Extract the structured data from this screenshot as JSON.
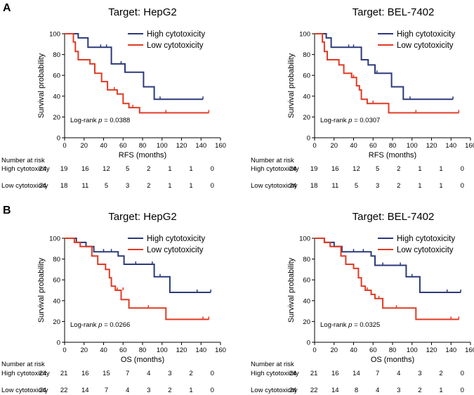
{
  "chart_data": [
    {
      "panel_label": "A",
      "type": "line",
      "title": "Target: HepG2",
      "xlabel": "RFS (months)",
      "ylabel": "Survival probability",
      "xlim": [
        0,
        160
      ],
      "ylim": [
        0,
        100
      ],
      "xticks": [
        "0",
        "20",
        "40",
        "60",
        "80",
        "100",
        "120",
        "140",
        "160"
      ],
      "yticks": [
        "0",
        "20",
        "40",
        "60",
        "80",
        "100"
      ],
      "legend_position": "top-right",
      "log_rank_prefix": "Log-rank ",
      "log_rank_p": "p",
      "log_rank_value": " = 0.0388",
      "series": [
        {
          "name": "High cytotoxicity",
          "color": "#2b3a7a",
          "steps": [
            [
              0,
              100
            ],
            [
              14,
              100
            ],
            [
              14,
              96
            ],
            [
              24,
              96
            ],
            [
              24,
              87
            ],
            [
              48,
              87
            ],
            [
              48,
              71
            ],
            [
              62,
              71
            ],
            [
              62,
              63
            ],
            [
              81,
              63
            ],
            [
              81,
              49
            ],
            [
              92,
              49
            ],
            [
              92,
              37
            ],
            [
              142,
              37
            ]
          ],
          "censors": [
            [
              37,
              87
            ],
            [
              43,
              87
            ],
            [
              58,
              71
            ],
            [
              98,
              37
            ],
            [
              142,
              37
            ]
          ]
        },
        {
          "name": "Low cytotoxicity",
          "color": "#e03b24",
          "steps": [
            [
              0,
              100
            ],
            [
              9,
              100
            ],
            [
              9,
              92
            ],
            [
              11,
              92
            ],
            [
              11,
              83
            ],
            [
              14,
              83
            ],
            [
              14,
              75
            ],
            [
              26,
              75
            ],
            [
              26,
              71
            ],
            [
              31,
              71
            ],
            [
              31,
              62
            ],
            [
              38,
              62
            ],
            [
              38,
              54
            ],
            [
              44,
              54
            ],
            [
              44,
              46
            ],
            [
              54,
              46
            ],
            [
              54,
              42
            ],
            [
              60,
              42
            ],
            [
              60,
              33
            ],
            [
              66,
              33
            ],
            [
              66,
              29
            ],
            [
              77,
              29
            ],
            [
              77,
              24
            ],
            [
              148,
              24
            ]
          ],
          "censors": [
            [
              51,
              46
            ],
            [
              70,
              29
            ],
            [
              104,
              24
            ],
            [
              148,
              24
            ]
          ]
        }
      ],
      "risk_header": "Number at risk",
      "risk_groups": [
        {
          "label": "High cytotoxicity",
          "values": [
            "24",
            "19",
            "16",
            "12",
            "5",
            "2",
            "1",
            "1",
            "0"
          ]
        },
        {
          "label": "Low cytotoxicity",
          "values": [
            "24",
            "18",
            "11",
            "5",
            "3",
            "2",
            "1",
            "1",
            "0"
          ]
        }
      ]
    },
    {
      "panel_label": "",
      "type": "line",
      "title": "Target: BEL-7402",
      "xlabel": "RFS (months)",
      "ylabel": "Survival probability",
      "xlim": [
        0,
        160
      ],
      "ylim": [
        0,
        100
      ],
      "xticks": [
        "0",
        "20",
        "40",
        "60",
        "80",
        "100",
        "120",
        "140",
        "160"
      ],
      "yticks": [
        "0",
        "20",
        "40",
        "60",
        "80",
        "100"
      ],
      "legend_position": "top-right",
      "log_rank_prefix": "Log-rank ",
      "log_rank_p": "p",
      "log_rank_value": " = 0.0307",
      "series": [
        {
          "name": "High cytotoxicity",
          "color": "#2b3a7a",
          "steps": [
            [
              0,
              100
            ],
            [
              12,
              100
            ],
            [
              12,
              96
            ],
            [
              17,
              96
            ],
            [
              17,
              87
            ],
            [
              48,
              87
            ],
            [
              48,
              75
            ],
            [
              55,
              75
            ],
            [
              55,
              70
            ],
            [
              62,
              70
            ],
            [
              62,
              62
            ],
            [
              79,
              62
            ],
            [
              79,
              49
            ],
            [
              91,
              49
            ],
            [
              91,
              37
            ],
            [
              142,
              37
            ]
          ],
          "censors": [
            [
              35,
              87
            ],
            [
              40,
              87
            ],
            [
              64,
              62
            ],
            [
              98,
              37
            ],
            [
              142,
              37
            ]
          ]
        },
        {
          "name": "Low cytotoxicity",
          "color": "#e03b24",
          "steps": [
            [
              0,
              100
            ],
            [
              8,
              100
            ],
            [
              8,
              92
            ],
            [
              10,
              92
            ],
            [
              10,
              83
            ],
            [
              13,
              83
            ],
            [
              13,
              75
            ],
            [
              25,
              75
            ],
            [
              25,
              70
            ],
            [
              30,
              70
            ],
            [
              30,
              62
            ],
            [
              38,
              62
            ],
            [
              38,
              58
            ],
            [
              43,
              58
            ],
            [
              43,
              50
            ],
            [
              46,
              50
            ],
            [
              46,
              46
            ],
            [
              48,
              46
            ],
            [
              48,
              37
            ],
            [
              54,
              37
            ],
            [
              54,
              33
            ],
            [
              76,
              33
            ],
            [
              76,
              24
            ],
            [
              148,
              24
            ]
          ],
          "censors": [
            [
              40,
              58
            ],
            [
              60,
              33
            ],
            [
              104,
              24
            ],
            [
              148,
              24
            ]
          ]
        }
      ],
      "risk_header": "Number at risk",
      "risk_groups": [
        {
          "label": "High cytotoxicity",
          "values": [
            "24",
            "19",
            "16",
            "12",
            "5",
            "2",
            "1",
            "1",
            "0"
          ]
        },
        {
          "label": "Low cytotoxicity",
          "values": [
            "24",
            "18",
            "11",
            "5",
            "3",
            "2",
            "1",
            "1",
            "0"
          ]
        }
      ]
    },
    {
      "panel_label": "B",
      "type": "line",
      "title": "Target: HepG2",
      "xlabel": "OS (months)",
      "ylabel": "Survival probability",
      "xlim": [
        0,
        160
      ],
      "ylim": [
        0,
        100
      ],
      "xticks": [
        "0",
        "20",
        "40",
        "60",
        "80",
        "100",
        "120",
        "140",
        "160"
      ],
      "yticks": [
        "0",
        "20",
        "40",
        "60",
        "80",
        "100"
      ],
      "legend_position": "top-right",
      "log_rank_prefix": "Log-rank ",
      "log_rank_p": "p",
      "log_rank_value": " = 0.0266",
      "series": [
        {
          "name": "High cytotoxicity",
          "color": "#2b3a7a",
          "steps": [
            [
              0,
              100
            ],
            [
              12,
              100
            ],
            [
              12,
              96
            ],
            [
              22,
              96
            ],
            [
              22,
              92
            ],
            [
              30,
              92
            ],
            [
              30,
              87
            ],
            [
              55,
              87
            ],
            [
              55,
              83
            ],
            [
              61,
              83
            ],
            [
              61,
              75
            ],
            [
              92,
              75
            ],
            [
              92,
              63
            ],
            [
              108,
              63
            ],
            [
              108,
              48
            ],
            [
              150,
              48
            ]
          ],
          "censors": [
            [
              40,
              87
            ],
            [
              48,
              87
            ],
            [
              73,
              75
            ],
            [
              90,
              75
            ],
            [
              98,
              63
            ],
            [
              136,
              48
            ],
            [
              150,
              48
            ]
          ]
        },
        {
          "name": "Low cytotoxicity",
          "color": "#e03b24",
          "steps": [
            [
              0,
              100
            ],
            [
              10,
              100
            ],
            [
              10,
              96
            ],
            [
              16,
              96
            ],
            [
              16,
              92
            ],
            [
              28,
              92
            ],
            [
              28,
              83
            ],
            [
              34,
              83
            ],
            [
              34,
              75
            ],
            [
              42,
              75
            ],
            [
              42,
              70
            ],
            [
              46,
              70
            ],
            [
              46,
              62
            ],
            [
              48,
              62
            ],
            [
              48,
              54
            ],
            [
              52,
              54
            ],
            [
              52,
              50
            ],
            [
              58,
              50
            ],
            [
              58,
              41
            ],
            [
              66,
              41
            ],
            [
              66,
              33
            ],
            [
              104,
              33
            ],
            [
              104,
              22
            ],
            [
              148,
              22
            ]
          ],
          "censors": [
            [
              54,
              50
            ],
            [
              60,
              50
            ],
            [
              86,
              33
            ],
            [
              142,
              22
            ],
            [
              148,
              22
            ]
          ]
        }
      ],
      "risk_header": "Number at risk",
      "risk_groups": [
        {
          "label": "High cytotoxicity",
          "values": [
            "24",
            "21",
            "16",
            "15",
            "7",
            "4",
            "3",
            "2",
            "0"
          ]
        },
        {
          "label": "Low cytotoxicity",
          "values": [
            "24",
            "22",
            "14",
            "7",
            "4",
            "3",
            "2",
            "1",
            "0"
          ]
        }
      ]
    },
    {
      "panel_label": "",
      "type": "line",
      "title": "Target: BEL-7402",
      "xlabel": "OS (months)",
      "ylabel": "Survival probability",
      "xlim": [
        0,
        160
      ],
      "ylim": [
        0,
        100
      ],
      "xticks": [
        "0",
        "20",
        "40",
        "60",
        "80",
        "100",
        "120",
        "140",
        "160"
      ],
      "yticks": [
        "0",
        "20",
        "40",
        "60",
        "80",
        "100"
      ],
      "legend_position": "top-right",
      "log_rank_prefix": "Log-rank ",
      "log_rank_p": "p",
      "log_rank_value": " = 0.0325",
      "series": [
        {
          "name": "High cytotoxicity",
          "color": "#2b3a7a",
          "steps": [
            [
              0,
              100
            ],
            [
              10,
              100
            ],
            [
              10,
              96
            ],
            [
              20,
              96
            ],
            [
              20,
              92
            ],
            [
              28,
              92
            ],
            [
              28,
              87
            ],
            [
              58,
              87
            ],
            [
              58,
              83
            ],
            [
              62,
              83
            ],
            [
              62,
              74
            ],
            [
              94,
              74
            ],
            [
              94,
              63
            ],
            [
              108,
              63
            ],
            [
              108,
              48
            ],
            [
              150,
              48
            ]
          ],
          "censors": [
            [
              40,
              87
            ],
            [
              50,
              87
            ],
            [
              70,
              74
            ],
            [
              88,
              74
            ],
            [
              100,
              63
            ],
            [
              136,
              48
            ],
            [
              150,
              48
            ]
          ]
        },
        {
          "name": "Low cytotoxicity",
          "color": "#e03b24",
          "steps": [
            [
              0,
              100
            ],
            [
              10,
              100
            ],
            [
              10,
              96
            ],
            [
              16,
              96
            ],
            [
              16,
              92
            ],
            [
              27,
              92
            ],
            [
              27,
              83
            ],
            [
              32,
              83
            ],
            [
              32,
              75
            ],
            [
              40,
              75
            ],
            [
              40,
              71
            ],
            [
              45,
              71
            ],
            [
              45,
              62
            ],
            [
              48,
              62
            ],
            [
              48,
              54
            ],
            [
              52,
              54
            ],
            [
              52,
              50
            ],
            [
              58,
              50
            ],
            [
              58,
              46
            ],
            [
              62,
              46
            ],
            [
              62,
              42
            ],
            [
              70,
              42
            ],
            [
              70,
              33
            ],
            [
              104,
              33
            ],
            [
              104,
              22
            ],
            [
              148,
              22
            ]
          ],
          "censors": [
            [
              54,
              50
            ],
            [
              66,
              42
            ],
            [
              84,
              33
            ],
            [
              140,
              22
            ],
            [
              148,
              22
            ]
          ]
        }
      ],
      "risk_header": "Number at risk",
      "risk_groups": [
        {
          "label": "High cytotoxicity",
          "values": [
            "24",
            "21",
            "16",
            "14",
            "7",
            "4",
            "3",
            "2",
            "0"
          ]
        },
        {
          "label": "Low cytotoxicity",
          "values": [
            "24",
            "22",
            "14",
            "8",
            "4",
            "3",
            "2",
            "1",
            "0"
          ]
        }
      ]
    }
  ]
}
